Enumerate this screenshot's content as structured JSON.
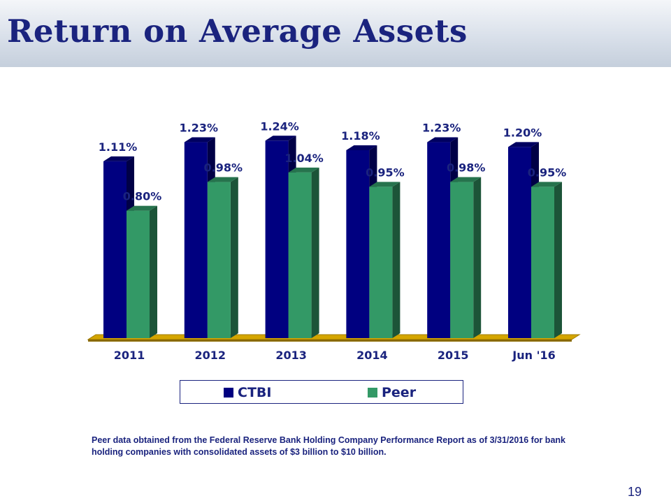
{
  "slide": {
    "title": "Return on Average Assets",
    "footnote": "Peer data obtained from the Federal Reserve Bank Holding Company Performance Report as of 3/31/2016 for bank holding companies with consolidated assets of $3 billion to $10 billion.",
    "page_number": "19"
  },
  "chart_data": {
    "type": "bar",
    "title": "",
    "xlabel": "",
    "ylabel": "",
    "categories": [
      "2011",
      "2012",
      "2013",
      "2014",
      "2015",
      "Jun '16"
    ],
    "series": [
      {
        "name": "CTBI",
        "values": [
          1.11,
          1.23,
          1.24,
          1.18,
          1.23,
          1.2
        ],
        "labels": [
          "1.11%",
          "1.23%",
          "1.24%",
          "1.18%",
          "1.23%",
          "1.20%"
        ],
        "color": "#000080"
      },
      {
        "name": "Peer",
        "values": [
          0.8,
          0.98,
          1.04,
          0.95,
          0.98,
          0.95
        ],
        "labels": [
          "0.80%",
          "0.98%",
          "1.04%",
          "0.95%",
          "0.98%",
          "0.95%"
        ],
        "color": "#339966"
      }
    ],
    "ylim": [
      0,
      1.3
    ],
    "grid": false,
    "legend_position": "bottom",
    "floor_color": "#d4a500",
    "style": "3d-clustered-column"
  }
}
